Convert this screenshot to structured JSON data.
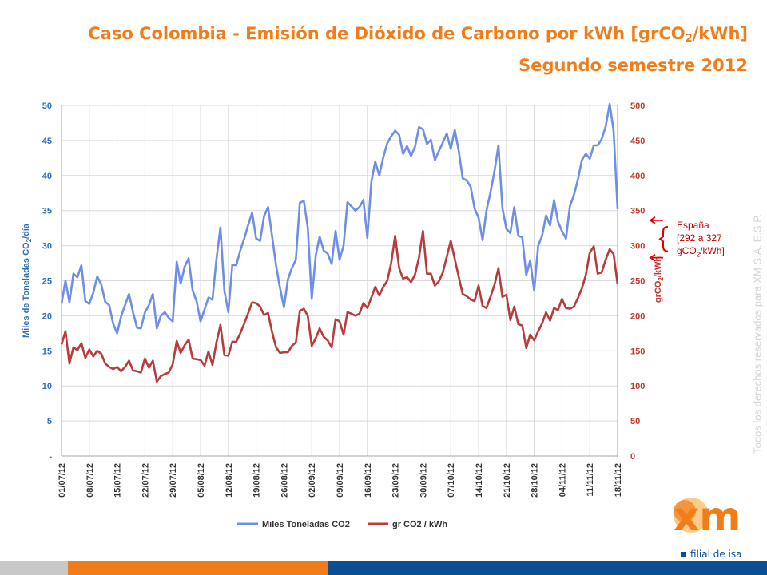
{
  "title": {
    "line1_prefix": "Caso Colombia - Emisión de Dióxido de Carbono por kWh  [grCO",
    "line1_sub": "2",
    "line1_suffix": "/kWh]",
    "line2": "Segundo semestre 2012"
  },
  "watermark": "Todos los derechos reservados para XM S.A. E.S.P.",
  "annotation": {
    "line1": "España",
    "line2": "[292 a 327",
    "line3_prefix": "gCO",
    "line3_sub": "2",
    "line3_suffix": "/kWh]"
  },
  "logo": {
    "brand": "xm",
    "tagline": "filial de isa"
  },
  "colors": {
    "accent": "#f07d19",
    "co2_tons": "#6f8fe6",
    "gr_per_kwh": "#b83c3c",
    "left_axis": "#2e6fb5",
    "right_axis": "#c0392b",
    "brand_blue": "#0b4e91"
  },
  "chart_data": {
    "type": "line",
    "title": "Caso Colombia - Emisión de Dióxido de Carbono por kWh [grCO2/kWh] Segundo semestre 2012",
    "xlabel": "",
    "ylabel_left_prefix": "Miles de Toneladas CO",
    "ylabel_left_sub": "2",
    "ylabel_left_suffix": "/día",
    "ylabel_right_prefix": "grCO",
    "ylabel_right_sub": "2",
    "ylabel_right_suffix": "/kWh",
    "ylim_left": [
      0,
      50
    ],
    "ylim_right": [
      0,
      500
    ],
    "yticks_left": [
      "-",
      "5",
      "10",
      "15",
      "20",
      "25",
      "30",
      "35",
      "40",
      "45",
      "50"
    ],
    "yticks_right": [
      "0",
      "50",
      "100",
      "150",
      "200",
      "250",
      "300",
      "350",
      "400",
      "450",
      "500"
    ],
    "x_tick_labels": [
      "01/07/12",
      "08/07/12",
      "15/07/12",
      "22/07/12",
      "29/07/12",
      "05/08/12",
      "12/08/12",
      "19/08/12",
      "26/08/12",
      "02/09/12",
      "09/09/12",
      "16/09/12",
      "23/09/12",
      "30/09/12",
      "07/10/12",
      "14/10/12",
      "21/10/12",
      "28/10/12",
      "04/11/12",
      "11/11/12",
      "18/11/12"
    ],
    "legend_position": "bottom",
    "grid": true,
    "series": [
      {
        "name": "Miles Toneladas CO2",
        "axis": "left",
        "values": [
          21.7,
          25.0,
          21.9,
          26.0,
          25.5,
          27.2,
          22.1,
          21.7,
          23.3,
          25.6,
          24.5,
          22.0,
          21.5,
          18.9,
          17.5,
          19.9,
          21.5,
          23.1,
          20.5,
          18.3,
          18.2,
          20.5,
          21.5,
          23.1,
          18.2,
          20.0,
          20.5,
          19.7,
          19.2,
          27.7,
          24.6,
          27.0,
          28.2,
          23.6,
          22.1,
          19.2,
          20.9,
          22.6,
          22.3,
          28.1,
          32.6,
          23.6,
          20.5,
          27.3,
          27.2,
          29.3,
          31.0,
          33.0,
          34.7,
          31.0,
          30.7,
          34.2,
          35.5,
          31.4,
          27.2,
          24.0,
          21.2,
          25.2,
          26.8,
          28.0,
          36.1,
          36.4,
          32.6,
          22.4,
          28.6,
          31.3,
          29.3,
          28.9,
          27.4,
          32.1,
          28.0,
          30.0,
          36.2,
          35.6,
          35.0,
          35.5,
          36.5,
          31.1,
          39.1,
          42.0,
          40.0,
          42.6,
          44.6,
          45.6,
          46.4,
          45.8,
          43.1,
          44.2,
          42.8,
          44.1,
          46.9,
          46.6,
          44.5,
          45.1,
          42.2,
          43.5,
          44.7,
          46.0,
          43.8,
          46.5,
          43.6,
          39.6,
          39.3,
          38.4,
          35.3,
          34.0,
          30.8,
          35.0,
          37.6,
          40.6,
          44.3,
          35.4,
          32.4,
          31.8,
          35.5,
          31.4,
          31.2,
          25.8,
          27.9,
          23.6,
          30.0,
          31.4,
          34.3,
          32.9,
          36.5,
          33.4,
          32.1,
          31.0,
          35.6,
          37.2,
          39.4,
          42.2,
          43.1,
          42.4,
          44.3,
          44.3,
          45.2,
          47.0,
          50.2,
          46.4,
          35.2
        ]
      },
      {
        "name": "gr CO2 / kWh",
        "axis": "right",
        "values": [
          159,
          178,
          132,
          155,
          151,
          161,
          140,
          152,
          142,
          150,
          146,
          132,
          127,
          124,
          127,
          121,
          127,
          136,
          122,
          121,
          119,
          139,
          126,
          136,
          106,
          114,
          117,
          119,
          131,
          164,
          147,
          158,
          166,
          139,
          138,
          137,
          129,
          149,
          130,
          162,
          187,
          144,
          143,
          163,
          163,
          175,
          189,
          204,
          219,
          218,
          213,
          201,
          204,
          177,
          155,
          147,
          148,
          148,
          157,
          162,
          207,
          210,
          200,
          157,
          168,
          182,
          170,
          165,
          155,
          195,
          192,
          173,
          205,
          203,
          200,
          203,
          218,
          211,
          226,
          241,
          229,
          241,
          250,
          275,
          314,
          268,
          253,
          255,
          248,
          259,
          283,
          321,
          260,
          260,
          243,
          249,
          262,
          284,
          307,
          281,
          256,
          231,
          228,
          223,
          221,
          243,
          214,
          211,
          227,
          244,
          268,
          227,
          230,
          194,
          213,
          188,
          186,
          154,
          173,
          165,
          178,
          189,
          205,
          193,
          211,
          208,
          224,
          211,
          210,
          213,
          225,
          239,
          258,
          290,
          299,
          260,
          262,
          280,
          295,
          288,
          245
        ]
      }
    ]
  }
}
